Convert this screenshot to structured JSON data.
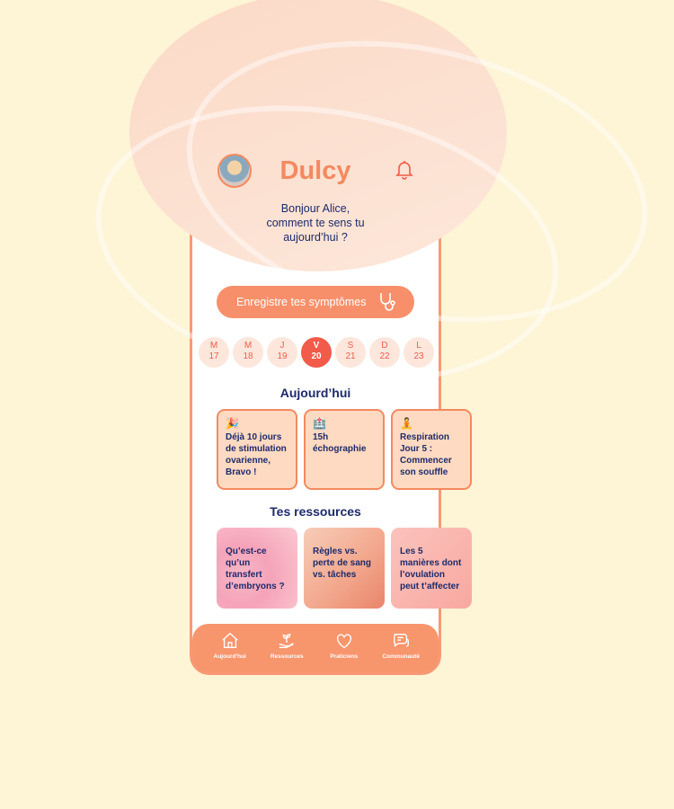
{
  "header": {
    "brand": "Dulcy",
    "greeting_lines": [
      "Bonjour Alice,",
      "comment te sens tu",
      "aujourd’hui ?"
    ]
  },
  "cta": {
    "label": "Enregistre tes symptômes",
    "icon": "stethoscope-icon"
  },
  "days": [
    {
      "l": "M",
      "n": "17"
    },
    {
      "l": "M",
      "n": "18"
    },
    {
      "l": "J",
      "n": "19"
    },
    {
      "l": "V",
      "n": "20",
      "selected": true
    },
    {
      "l": "S",
      "n": "21"
    },
    {
      "l": "D",
      "n": "22"
    },
    {
      "l": "L",
      "n": "23"
    }
  ],
  "today": {
    "title": "Aujourd’hui",
    "cards": [
      {
        "emoji": "🎉",
        "text": "Déjà 10 jours de stimulation ovarienne, Bravo !"
      },
      {
        "emoji": "🏥",
        "text": "15h échographie"
      },
      {
        "emoji": "🧘",
        "text": "Respiration Jour 5 : Commencer son souffle"
      }
    ]
  },
  "resources": {
    "title": "Tes ressources",
    "cards": [
      {
        "text": "Qu’est-ce qu’un transfert d’embryons ?"
      },
      {
        "text": "Règles vs. perte de sang vs. tâches"
      },
      {
        "text": "Les 5 manières dont l’ovulation peut t’affecter"
      }
    ]
  },
  "nav": [
    {
      "label": "Aujourd'hui",
      "icon": "home-icon"
    },
    {
      "label": "Ressources",
      "icon": "plant-hand-icon"
    },
    {
      "label": "Praticiens",
      "icon": "heart-icon"
    },
    {
      "label": "Communauté",
      "icon": "chat-icon"
    }
  ],
  "colors": {
    "accent": "#f4895f",
    "navy": "#1d2a6b",
    "selected_day": "#f25a4a"
  }
}
